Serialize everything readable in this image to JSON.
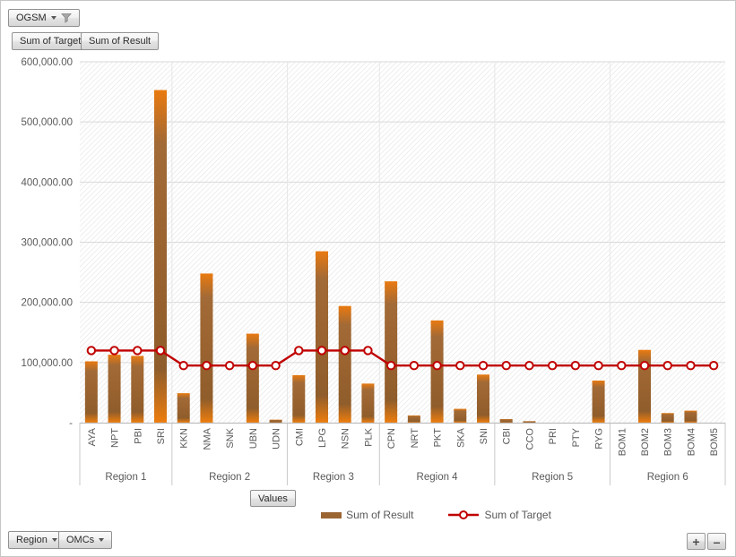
{
  "filter_area": {
    "field": "OGSM"
  },
  "field_buttons": {
    "sum_of_target": "Sum of Target",
    "sum_of_result": "Sum of Result"
  },
  "axis_field_button": "Values",
  "axis_buttons": {
    "region": "Region",
    "omcs": "OMCs"
  },
  "expand_buttons": {
    "expand": "+",
    "collapse": "–"
  },
  "legend": {
    "position": "bottom",
    "items": [
      {
        "label": "Sum of Result",
        "type": "bar",
        "color": "#9b6532"
      },
      {
        "label": "Sum of Target",
        "type": "line",
        "color": "#c00000"
      }
    ]
  },
  "colors": {
    "bar_orange": "#e97a10",
    "bar_brown": "#9a6330",
    "line_red": "#c00000",
    "axis_text": "#595959",
    "gridline": "#d9d9d9",
    "axis_line": "#bfbfbf",
    "separator_below": "#c9c9c9",
    "separator_in_plot": "#e6e6e6"
  },
  "chart_data": {
    "type": "combo-bar-line",
    "title": "",
    "xlabel": "",
    "ylabel": "",
    "ylim": [
      0,
      600000
    ],
    "grid": true,
    "legend_position": "bottom",
    "y_ticks": [
      {
        "value": 600000,
        "label": "600,000.00"
      },
      {
        "value": 500000,
        "label": "500,000.00"
      },
      {
        "value": 400000,
        "label": "400,000.00"
      },
      {
        "value": 300000,
        "label": "300,000.00"
      },
      {
        "value": 200000,
        "label": "200,000.00"
      },
      {
        "value": 100000,
        "label": "100,000.00"
      },
      {
        "value": 0,
        "label": "-"
      }
    ],
    "groups": [
      {
        "label": "Region 1",
        "categories": [
          "AYA",
          "NPT",
          "PBI",
          "SRI"
        ]
      },
      {
        "label": "Region 2",
        "categories": [
          "KKN",
          "NMA",
          "SNK",
          "UBN",
          "UDN"
        ]
      },
      {
        "label": "Region 3",
        "categories": [
          "CMI",
          "LPG",
          "NSN",
          "PLK"
        ]
      },
      {
        "label": "Region 4",
        "categories": [
          "CPN",
          "NRT",
          "PKT",
          "SKA",
          "SNI"
        ]
      },
      {
        "label": "Region 5",
        "categories": [
          "CBI",
          "CCO",
          "PRI",
          "PTY",
          "RYG"
        ]
      },
      {
        "label": "Region 6",
        "categories": [
          "BOM1",
          "BOM2",
          "BOM3",
          "BOM4",
          "BOM5"
        ]
      }
    ],
    "categories": [
      "AYA",
      "NPT",
      "PBI",
      "SRI",
      "KKN",
      "NMA",
      "SNK",
      "UBN",
      "UDN",
      "CMI",
      "LPG",
      "NSN",
      "PLK",
      "CPN",
      "NRT",
      "PKT",
      "SKA",
      "SNI",
      "CBI",
      "CCO",
      "PRI",
      "PTY",
      "RYG",
      "BOM1",
      "BOM2",
      "BOM3",
      "BOM4",
      "BOM5"
    ],
    "series": [
      {
        "name": "Sum of Result",
        "type": "bar",
        "values": [
          102000,
          113000,
          111000,
          553000,
          49000,
          248000,
          0,
          148000,
          5000,
          79000,
          285000,
          194000,
          65000,
          235000,
          12000,
          170000,
          23000,
          80000,
          6000,
          2500,
          0,
          0,
          70000,
          0,
          121000,
          16000,
          20000,
          0
        ]
      },
      {
        "name": "Sum of Target",
        "type": "line",
        "values": [
          120000,
          120000,
          120000,
          120000,
          95000,
          95000,
          95000,
          95000,
          95000,
          120000,
          120000,
          120000,
          120000,
          95000,
          95000,
          95000,
          95000,
          95000,
          95000,
          95000,
          95000,
          95000,
          95000,
          95000,
          95000,
          95000,
          95000,
          95000
        ]
      }
    ]
  }
}
